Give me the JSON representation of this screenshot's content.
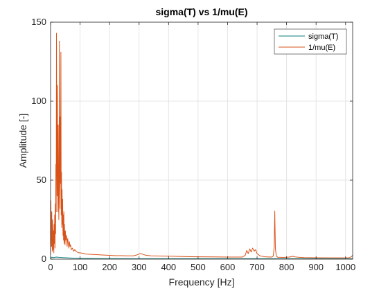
{
  "chart_data": {
    "type": "line",
    "title": "sigma(T) vs 1/mu(E)",
    "xlabel": "Frequency [Hz]",
    "ylabel": "Amplitude [-]",
    "xlim": [
      0,
      1024
    ],
    "ylim": [
      0,
      150
    ],
    "xticks": [
      0,
      100,
      200,
      300,
      400,
      500,
      600,
      700,
      800,
      900,
      1000
    ],
    "yticks": [
      0,
      50,
      100,
      150
    ],
    "grid": true,
    "legend_position": "top-right",
    "series": [
      {
        "name": "sigma(T)",
        "color": "#0b7c7c",
        "x": [
          0,
          2,
          5,
          10,
          20,
          30,
          50,
          80,
          100,
          150,
          200,
          300,
          400,
          500,
          600,
          700,
          800,
          900,
          1000,
          1024
        ],
        "y": [
          0.5,
          0.8,
          1.2,
          1.0,
          1.3,
          1.1,
          0.9,
          0.6,
          0.5,
          0.4,
          0.35,
          0.3,
          0.3,
          0.25,
          0.25,
          0.3,
          0.25,
          0.25,
          0.2,
          0.2
        ]
      },
      {
        "name": "1/mu(E)",
        "color": "#d95319",
        "x": [
          0,
          1,
          2,
          3,
          4,
          5,
          6,
          7,
          8,
          9,
          10,
          11,
          12,
          13,
          14,
          15,
          16,
          17,
          18,
          19,
          20,
          21,
          22,
          23,
          24,
          25,
          26,
          27,
          28,
          29,
          30,
          31,
          32,
          33,
          34,
          35,
          36,
          37,
          38,
          39,
          40,
          41,
          42,
          43,
          44,
          45,
          46,
          47,
          48,
          49,
          50,
          52,
          54,
          56,
          58,
          60,
          62,
          64,
          66,
          68,
          70,
          74,
          78,
          82,
          86,
          90,
          95,
          100,
          110,
          120,
          140,
          160,
          180,
          200,
          220,
          240,
          260,
          280,
          290,
          300,
          305,
          310,
          320,
          340,
          380,
          420,
          460,
          500,
          550,
          600,
          650,
          660,
          665,
          670,
          675,
          680,
          685,
          690,
          695,
          700,
          710,
          730,
          750,
          755,
          758,
          760,
          762,
          765,
          770,
          790,
          810,
          820,
          830,
          840,
          860,
          900,
          950,
          1000,
          1010,
          1020,
          1024
        ],
        "y": [
          3,
          37,
          20,
          8,
          30,
          12,
          5,
          25,
          15,
          6,
          18,
          4,
          22,
          10,
          28,
          7,
          35,
          16,
          60,
          30,
          143,
          70,
          40,
          110,
          55,
          30,
          85,
          45,
          25,
          60,
          138,
          50,
          32,
          90,
          48,
          131,
          28,
          55,
          20,
          44,
          22,
          38,
          15,
          28,
          12,
          30,
          10,
          22,
          14,
          9,
          18,
          12,
          15,
          8,
          13,
          10,
          7,
          11,
          8,
          9,
          6,
          7,
          5,
          6,
          5,
          4.5,
          4,
          4,
          3.6,
          3.2,
          3,
          2.8,
          2.6,
          2.4,
          2.2,
          2.2,
          2.1,
          2.1,
          2.5,
          3.2,
          3.6,
          3.2,
          2.6,
          2.1,
          1.9,
          1.8,
          1.6,
          1.5,
          1.4,
          1.3,
          1.3,
          2.5,
          5.5,
          3.5,
          6.5,
          4.5,
          7,
          5,
          6,
          3.5,
          2,
          1.4,
          1.3,
          2,
          8,
          30.5,
          7,
          2,
          1.2,
          1.1,
          1.3,
          1.8,
          1.4,
          1.2,
          1,
          0.9,
          0.8,
          0.8,
          0.8,
          1.5,
          2.5
        ]
      }
    ]
  }
}
